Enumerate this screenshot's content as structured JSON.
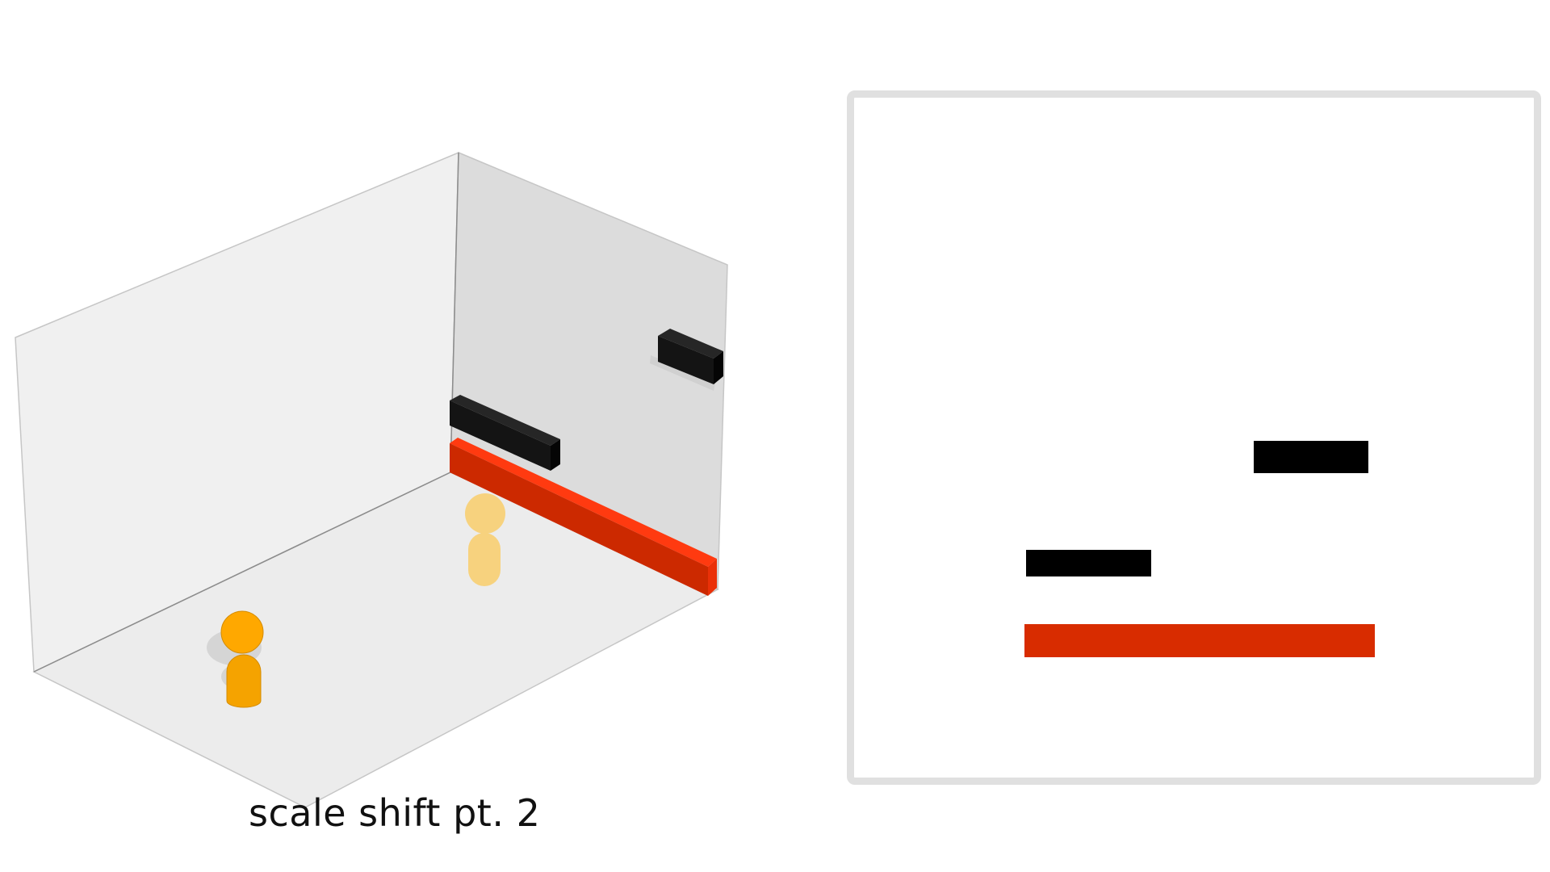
{
  "level": {
    "caption": "scale shift pt. 2"
  },
  "colors": {
    "background": "#ffffff",
    "left_wall": "#f0f0f0",
    "back_wall": "#dcdcdc",
    "floor": "#ececec",
    "wall_edge": "#8c8c8c",
    "ledge": "#141414",
    "floor_bar_front": "#cc2900",
    "floor_bar_top": "#ff3a10",
    "player": "#ffa800",
    "player_ghost": "#f7d27e",
    "panel_border": "#e0e0e0",
    "preview_ledge": "#000000",
    "preview_floor_bar": "#d82c00"
  },
  "icons": {
    "player": "player-figure-icon",
    "player_ghost": "player-ghost-icon"
  }
}
